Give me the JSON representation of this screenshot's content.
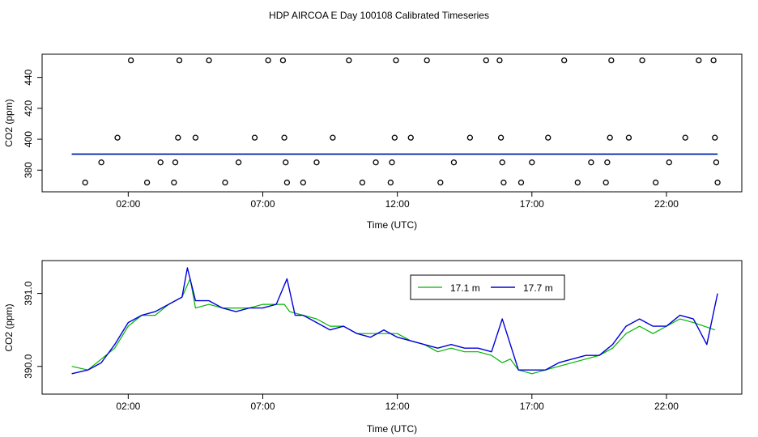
{
  "title": "HDP AIRCOA E  Day 100108  Calibrated Timeseries",
  "colors": {
    "series1": "#00b400",
    "series2": "#0000dc",
    "axis": "#000000"
  },
  "chart_data": [
    {
      "type": "scatter",
      "xlabel": "Time (UTC)",
      "ylabel": "CO2 (ppm)",
      "xlim": [
        -1.2,
        24.8
      ],
      "ylim": [
        366,
        455
      ],
      "xticks": [
        2,
        7,
        12,
        17,
        22
      ],
      "xtick_labels": [
        "02:00",
        "07:00",
        "12:00",
        "17:00",
        "22:00"
      ],
      "yticks": [
        380,
        400,
        420,
        440
      ],
      "ytick_labels": [
        "380",
        "400",
        "420",
        "440"
      ],
      "grid": false,
      "calibration_points": [
        {
          "t": 0.4,
          "v": 372
        },
        {
          "t": 1.0,
          "v": 385
        },
        {
          "t": 1.6,
          "v": 401
        },
        {
          "t": 2.1,
          "v": 451
        },
        {
          "t": 2.7,
          "v": 372
        },
        {
          "t": 3.2,
          "v": 385
        },
        {
          "t": 3.7,
          "v": 372
        },
        {
          "t": 3.75,
          "v": 385
        },
        {
          "t": 3.85,
          "v": 401
        },
        {
          "t": 3.9,
          "v": 451
        },
        {
          "t": 4.5,
          "v": 401
        },
        {
          "t": 5.0,
          "v": 451
        },
        {
          "t": 5.6,
          "v": 372
        },
        {
          "t": 6.1,
          "v": 385
        },
        {
          "t": 6.7,
          "v": 401
        },
        {
          "t": 7.2,
          "v": 451
        },
        {
          "t": 7.75,
          "v": 451
        },
        {
          "t": 7.8,
          "v": 401
        },
        {
          "t": 7.85,
          "v": 385
        },
        {
          "t": 7.9,
          "v": 372
        },
        {
          "t": 8.5,
          "v": 372
        },
        {
          "t": 9.0,
          "v": 385
        },
        {
          "t": 9.6,
          "v": 401
        },
        {
          "t": 10.2,
          "v": 451
        },
        {
          "t": 10.7,
          "v": 372
        },
        {
          "t": 11.2,
          "v": 385
        },
        {
          "t": 11.75,
          "v": 372
        },
        {
          "t": 11.8,
          "v": 385
        },
        {
          "t": 11.9,
          "v": 401
        },
        {
          "t": 11.95,
          "v": 451
        },
        {
          "t": 12.5,
          "v": 401
        },
        {
          "t": 13.1,
          "v": 451
        },
        {
          "t": 13.6,
          "v": 372
        },
        {
          "t": 14.1,
          "v": 385
        },
        {
          "t": 14.7,
          "v": 401
        },
        {
          "t": 15.3,
          "v": 451
        },
        {
          "t": 15.8,
          "v": 451
        },
        {
          "t": 15.85,
          "v": 401
        },
        {
          "t": 15.9,
          "v": 385
        },
        {
          "t": 15.95,
          "v": 372
        },
        {
          "t": 16.6,
          "v": 372
        },
        {
          "t": 17.0,
          "v": 385
        },
        {
          "t": 17.6,
          "v": 401
        },
        {
          "t": 18.2,
          "v": 451
        },
        {
          "t": 18.7,
          "v": 372
        },
        {
          "t": 19.2,
          "v": 385
        },
        {
          "t": 19.75,
          "v": 372
        },
        {
          "t": 19.8,
          "v": 385
        },
        {
          "t": 19.9,
          "v": 401
        },
        {
          "t": 19.95,
          "v": 451
        },
        {
          "t": 20.6,
          "v": 401
        },
        {
          "t": 21.1,
          "v": 451
        },
        {
          "t": 21.6,
          "v": 372
        },
        {
          "t": 22.1,
          "v": 385
        },
        {
          "t": 22.7,
          "v": 401
        },
        {
          "t": 23.2,
          "v": 451
        },
        {
          "t": 23.75,
          "v": 451
        },
        {
          "t": 23.8,
          "v": 401
        },
        {
          "t": 23.85,
          "v": 385
        },
        {
          "t": 23.9,
          "v": 372
        }
      ],
      "trace_level": 390.2
    },
    {
      "type": "line",
      "xlabel": "Time (UTC)",
      "ylabel": "CO2 (ppm)",
      "xlim": [
        -1.2,
        24.8
      ],
      "ylim": [
        389.62,
        391.45
      ],
      "xticks": [
        2,
        7,
        12,
        17,
        22
      ],
      "xtick_labels": [
        "02:00",
        "07:00",
        "12:00",
        "17:00",
        "22:00"
      ],
      "yticks": [
        390.0,
        391.0
      ],
      "ytick_labels": [
        "390.0",
        "391.0"
      ],
      "grid": false,
      "legend_position": "top-center",
      "series": [
        {
          "name": "17.1 m",
          "x": [
            -0.1,
            0.5,
            1.0,
            1.5,
            2.0,
            2.5,
            3.0,
            3.5,
            4.0,
            4.3,
            4.5,
            5.0,
            5.5,
            6.0,
            6.5,
            7.0,
            7.5,
            7.8,
            8.0,
            8.5,
            9.0,
            9.5,
            10.0,
            10.5,
            11.0,
            11.5,
            12.0,
            12.5,
            13.0,
            13.5,
            14.0,
            14.5,
            15.0,
            15.5,
            15.9,
            16.2,
            16.5,
            17.0,
            17.5,
            18.0,
            18.5,
            19.0,
            19.5,
            20.0,
            20.5,
            21.0,
            21.5,
            22.0,
            22.5,
            23.0,
            23.4,
            23.8
          ],
          "values": [
            390.0,
            389.95,
            390.1,
            390.25,
            390.55,
            390.7,
            390.7,
            390.85,
            390.95,
            391.2,
            390.8,
            390.85,
            390.8,
            390.8,
            390.8,
            390.85,
            390.85,
            390.85,
            390.75,
            390.7,
            390.65,
            390.55,
            390.55,
            390.45,
            390.45,
            390.45,
            390.45,
            390.35,
            390.3,
            390.2,
            390.25,
            390.2,
            390.2,
            390.15,
            390.05,
            390.1,
            389.95,
            389.9,
            389.95,
            390.0,
            390.05,
            390.1,
            390.15,
            390.25,
            390.45,
            390.55,
            390.45,
            390.55,
            390.65,
            390.6,
            390.55,
            390.5
          ]
        },
        {
          "name": "17.7 m",
          "x": [
            -0.1,
            0.5,
            1.0,
            1.5,
            2.0,
            2.5,
            3.0,
            3.5,
            4.0,
            4.2,
            4.5,
            5.0,
            5.5,
            6.0,
            6.5,
            7.0,
            7.5,
            7.9,
            8.2,
            8.5,
            9.0,
            9.5,
            10.0,
            10.5,
            11.0,
            11.5,
            12.0,
            12.5,
            13.0,
            13.5,
            14.0,
            14.5,
            15.0,
            15.5,
            15.9,
            16.2,
            16.5,
            17.0,
            17.5,
            18.0,
            18.5,
            19.0,
            19.5,
            20.0,
            20.5,
            21.0,
            21.5,
            22.0,
            22.5,
            23.0,
            23.5,
            23.9
          ],
          "values": [
            389.9,
            389.95,
            390.05,
            390.3,
            390.6,
            390.7,
            390.75,
            390.85,
            390.95,
            391.35,
            390.9,
            390.9,
            390.8,
            390.75,
            390.8,
            390.8,
            390.85,
            391.2,
            390.7,
            390.7,
            390.6,
            390.5,
            390.55,
            390.45,
            390.4,
            390.5,
            390.4,
            390.35,
            390.3,
            390.25,
            390.3,
            390.25,
            390.25,
            390.2,
            390.65,
            390.3,
            389.95,
            389.95,
            389.95,
            390.05,
            390.1,
            390.15,
            390.15,
            390.3,
            390.55,
            390.65,
            390.55,
            390.55,
            390.7,
            390.65,
            390.3,
            391.0
          ]
        }
      ]
    }
  ]
}
